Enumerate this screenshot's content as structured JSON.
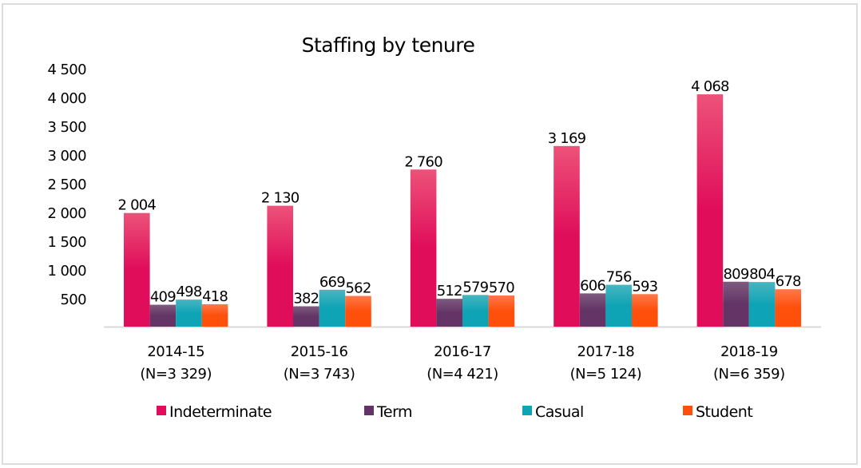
{
  "chart_data": {
    "type": "bar",
    "title": "Staffing by tenure",
    "xlabel": "",
    "ylabel": "",
    "ylim": [
      0,
      4500
    ],
    "yticks": [
      500,
      1000,
      1500,
      2000,
      2500,
      3000,
      3500,
      4000,
      4500
    ],
    "ytick_labels": [
      "500",
      "1 000",
      "1 500",
      "2 000",
      "2 500",
      "3 000",
      "3 500",
      "4 000",
      "4 500"
    ],
    "grid": false,
    "legend_position": "bottom",
    "categories": [
      "2014-15",
      "2015-16",
      "2016-17",
      "2017-18",
      "2018-19"
    ],
    "category_sublabels": [
      "(N=3 329)",
      "(N=3 743)",
      "(N=4 421)",
      "(N=5 124)",
      "(N=6 359)"
    ],
    "series": [
      {
        "name": "Indeterminate",
        "color": "#e00d5a",
        "color_light": "#ec5279",
        "values": [
          2004,
          2130,
          2760,
          3169,
          4068
        ],
        "labels": [
          "2 004",
          "2 130",
          "2 760",
          "3 169",
          "4 068"
        ]
      },
      {
        "name": "Term",
        "color": "#633465",
        "color_light": "#7f5b80",
        "values": [
          409,
          382,
          512,
          606,
          809
        ],
        "labels": [
          "409",
          "382",
          "512",
          "606",
          "809"
        ]
      },
      {
        "name": "Casual",
        "color": "#0ea4b5",
        "color_light": "#48b5c0",
        "values": [
          498,
          669,
          579,
          756,
          804
        ],
        "labels": [
          "498",
          "669",
          "579",
          "756",
          "804"
        ]
      },
      {
        "name": "Student",
        "color": "#fe4f0b",
        "color_light": "#ff7848",
        "values": [
          418,
          562,
          570,
          593,
          678
        ],
        "labels": [
          "418",
          "562",
          "570",
          "593",
          "678"
        ]
      }
    ]
  }
}
